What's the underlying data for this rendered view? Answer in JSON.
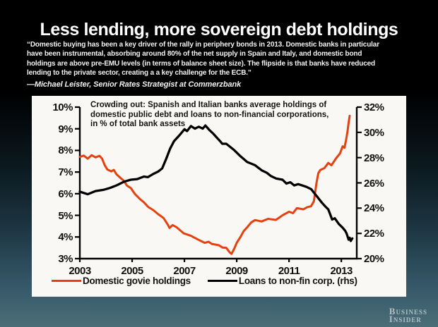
{
  "slide": {
    "title": "Less lending, more sovereign debt holdings",
    "quote": "“Domestic buying has been a key driver of the rally in periphery bonds in 2013. Domestic banks in particular\nhave been instrumental, absorbing around 80% of the net supply in Spain and Italy, and domestic bond\nholdings are above pre-EMU levels (in terms of balance sheet size). The flipside is that banks have reduced\nlending to the private sector, creating a a key challenge for the ECB.”",
    "attribution": "—Michael Leister, Senior Rates Strategist at Commerzbank",
    "logo_line1": "Business",
    "logo_line2": "Insider"
  },
  "chart_data": {
    "type": "line",
    "title": "Crowding out: Spanish and Italian banks average holdings of\ndomestic public debt and loans to non-financial corporations,\nin % of total bank assets",
    "x_range": [
      2003,
      2013.59
    ],
    "x_ticks": [
      {
        "v": 2003,
        "label": "2003"
      },
      {
        "v": 2005,
        "label": "2005"
      },
      {
        "v": 2007,
        "label": "2007"
      },
      {
        "v": 2009,
        "label": "2009"
      },
      {
        "v": 2011,
        "label": "2011"
      },
      {
        "v": 2013,
        "label": "2013"
      }
    ],
    "left_axis": {
      "min": 3,
      "max": 10,
      "ticks": [
        {
          "v": 10,
          "label": "10%"
        },
        {
          "v": 9,
          "label": "9%"
        },
        {
          "v": 8,
          "label": "8%"
        },
        {
          "v": 7,
          "label": "7%"
        },
        {
          "v": 6,
          "label": "6%"
        },
        {
          "v": 5,
          "label": "5%"
        },
        {
          "v": 4,
          "label": "4%"
        },
        {
          "v": 3,
          "label": "3%"
        }
      ]
    },
    "right_axis": {
      "min": 20,
      "max": 32,
      "ticks": [
        {
          "v": 32,
          "label": "32%"
        },
        {
          "v": 30,
          "label": "30%"
        },
        {
          "v": 28,
          "label": "28%"
        },
        {
          "v": 26,
          "label": "26%"
        },
        {
          "v": 24,
          "label": "24%"
        },
        {
          "v": 22,
          "label": "22%"
        },
        {
          "v": 20,
          "label": "20%"
        }
      ]
    },
    "grid": false,
    "legend_position": "bottom",
    "series": [
      {
        "name": "Domestic govie holdings",
        "axis": "left",
        "color": "#e5400e",
        "points": [
          [
            2003.0,
            7.7
          ],
          [
            2003.15,
            7.76
          ],
          [
            2003.3,
            7.62
          ],
          [
            2003.45,
            7.78
          ],
          [
            2003.6,
            7.68
          ],
          [
            2003.75,
            7.75
          ],
          [
            2003.85,
            7.62
          ],
          [
            2003.95,
            7.32
          ],
          [
            2004.05,
            7.12
          ],
          [
            2004.2,
            7.03
          ],
          [
            2004.3,
            7.1
          ],
          [
            2004.4,
            6.9
          ],
          [
            2004.55,
            6.73
          ],
          [
            2004.68,
            6.6
          ],
          [
            2004.8,
            6.38
          ],
          [
            2004.95,
            6.26
          ],
          [
            2005.1,
            6.0
          ],
          [
            2005.3,
            5.75
          ],
          [
            2005.45,
            5.6
          ],
          [
            2005.62,
            5.38
          ],
          [
            2005.8,
            5.25
          ],
          [
            2006.0,
            5.05
          ],
          [
            2006.2,
            4.88
          ],
          [
            2006.35,
            4.6
          ],
          [
            2006.43,
            4.42
          ],
          [
            2006.55,
            4.55
          ],
          [
            2006.7,
            4.45
          ],
          [
            2006.97,
            4.17
          ],
          [
            2007.24,
            4.06
          ],
          [
            2007.51,
            3.89
          ],
          [
            2007.78,
            3.73
          ],
          [
            2007.92,
            3.78
          ],
          [
            2008.05,
            3.68
          ],
          [
            2008.32,
            3.62
          ],
          [
            2008.46,
            3.51
          ],
          [
            2008.6,
            3.5
          ],
          [
            2008.73,
            3.29
          ],
          [
            2008.8,
            3.22
          ],
          [
            2008.9,
            3.45
          ],
          [
            2009.0,
            3.73
          ],
          [
            2009.14,
            4.0
          ],
          [
            2009.27,
            4.28
          ],
          [
            2009.4,
            4.45
          ],
          [
            2009.55,
            4.67
          ],
          [
            2009.7,
            4.78
          ],
          [
            2009.95,
            4.72
          ],
          [
            2010.2,
            4.84
          ],
          [
            2010.5,
            4.79
          ],
          [
            2010.76,
            5.01
          ],
          [
            2011.0,
            5.17
          ],
          [
            2011.15,
            5.1
          ],
          [
            2011.3,
            5.33
          ],
          [
            2011.55,
            5.28
          ],
          [
            2011.7,
            5.38
          ],
          [
            2011.84,
            5.42
          ],
          [
            2011.95,
            5.65
          ],
          [
            2012.05,
            6.5
          ],
          [
            2012.12,
            6.95
          ],
          [
            2012.2,
            7.1
          ],
          [
            2012.35,
            7.18
          ],
          [
            2012.5,
            7.42
          ],
          [
            2012.62,
            7.31
          ],
          [
            2012.8,
            7.64
          ],
          [
            2012.95,
            7.86
          ],
          [
            2013.05,
            8.19
          ],
          [
            2013.12,
            8.12
          ],
          [
            2013.18,
            8.47
          ],
          [
            2013.24,
            8.9
          ],
          [
            2013.28,
            9.29
          ],
          [
            2013.32,
            9.6
          ]
        ]
      },
      {
        "name": "Loans to non-fin corp. (rhs)",
        "axis": "right",
        "color": "#000000",
        "points": [
          [
            2003.0,
            25.3
          ],
          [
            2003.3,
            25.1
          ],
          [
            2003.6,
            25.35
          ],
          [
            2003.9,
            25.45
          ],
          [
            2004.15,
            25.6
          ],
          [
            2004.4,
            25.8
          ],
          [
            2004.7,
            26.1
          ],
          [
            2004.95,
            26.25
          ],
          [
            2005.2,
            26.3
          ],
          [
            2005.45,
            26.5
          ],
          [
            2005.6,
            26.45
          ],
          [
            2005.8,
            26.7
          ],
          [
            2006.0,
            26.9
          ],
          [
            2006.15,
            27.15
          ],
          [
            2006.3,
            27.9
          ],
          [
            2006.45,
            28.7
          ],
          [
            2006.6,
            29.3
          ],
          [
            2006.8,
            29.75
          ],
          [
            2007.0,
            30.25
          ],
          [
            2007.1,
            30.1
          ],
          [
            2007.25,
            30.5
          ],
          [
            2007.4,
            30.3
          ],
          [
            2007.55,
            30.45
          ],
          [
            2007.7,
            30.3
          ],
          [
            2007.8,
            30.55
          ],
          [
            2007.95,
            30.2
          ],
          [
            2008.1,
            29.9
          ],
          [
            2008.3,
            29.45
          ],
          [
            2008.45,
            29.1
          ],
          [
            2008.6,
            29.1
          ],
          [
            2008.9,
            28.6
          ],
          [
            2009.15,
            28.1
          ],
          [
            2009.4,
            27.65
          ],
          [
            2009.7,
            27.4
          ],
          [
            2009.95,
            27.0
          ],
          [
            2010.15,
            26.8
          ],
          [
            2010.3,
            26.55
          ],
          [
            2010.5,
            26.35
          ],
          [
            2010.75,
            26.25
          ],
          [
            2010.9,
            25.95
          ],
          [
            2011.05,
            26.05
          ],
          [
            2011.2,
            25.8
          ],
          [
            2011.35,
            25.9
          ],
          [
            2011.5,
            25.8
          ],
          [
            2011.65,
            25.7
          ],
          [
            2011.85,
            25.5
          ],
          [
            2012.0,
            25.1
          ],
          [
            2012.1,
            24.85
          ],
          [
            2012.25,
            24.45
          ],
          [
            2012.4,
            24.1
          ],
          [
            2012.5,
            23.9
          ],
          [
            2012.65,
            23.1
          ],
          [
            2012.75,
            23.2
          ],
          [
            2012.9,
            22.75
          ],
          [
            2013.05,
            22.45
          ],
          [
            2013.15,
            22.2
          ],
          [
            2013.2,
            22.0
          ],
          [
            2013.28,
            21.5
          ],
          [
            2013.32,
            21.65
          ],
          [
            2013.36,
            21.4
          ],
          [
            2013.42,
            21.6
          ]
        ]
      }
    ]
  }
}
